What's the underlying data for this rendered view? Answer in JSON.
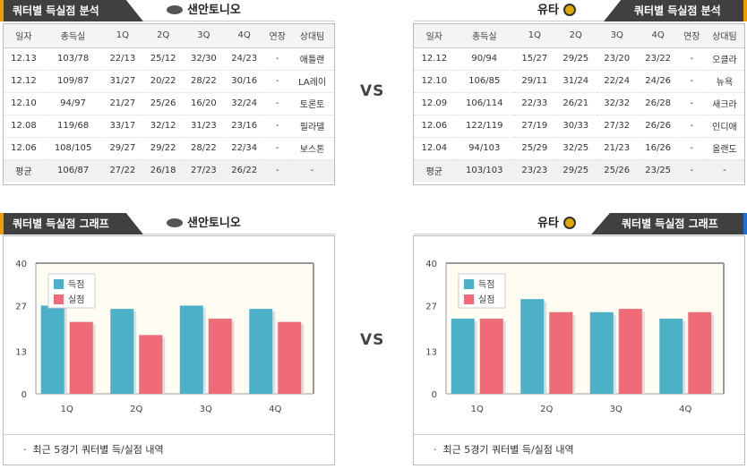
{
  "analysis": {
    "title": "쿼터별 득실점 분석",
    "left_team": "샌안토니오",
    "right_team": "유타",
    "columns": [
      "일자",
      "총득실",
      "1Q",
      "2Q",
      "3Q",
      "4Q",
      "연장",
      "상대팀"
    ],
    "left_rows": [
      [
        "12.13",
        "103/78",
        "22/13",
        "25/12",
        "32/30",
        "24/23",
        "-",
        "애틀랜"
      ],
      [
        "12.12",
        "109/87",
        "31/27",
        "20/22",
        "28/22",
        "30/16",
        "-",
        "LA레이"
      ],
      [
        "12.10",
        "94/97",
        "21/27",
        "25/26",
        "16/20",
        "32/24",
        "-",
        "토론토"
      ],
      [
        "12.08",
        "119/68",
        "33/17",
        "32/12",
        "31/23",
        "23/16",
        "-",
        "필라델"
      ],
      [
        "12.06",
        "108/105",
        "29/27",
        "29/22",
        "28/22",
        "22/34",
        "-",
        "보스톤"
      ]
    ],
    "left_avg": [
      "평균",
      "106/87",
      "27/22",
      "26/18",
      "27/23",
      "26/22",
      "-",
      "-"
    ],
    "right_rows": [
      [
        "12.12",
        "90/94",
        "15/27",
        "29/25",
        "23/20",
        "23/22",
        "-",
        "오클라"
      ],
      [
        "12.10",
        "106/85",
        "29/11",
        "31/24",
        "22/24",
        "24/26",
        "-",
        "뉴욕"
      ],
      [
        "12.09",
        "106/114",
        "22/33",
        "26/21",
        "32/32",
        "26/28",
        "-",
        "새크라"
      ],
      [
        "12.06",
        "122/119",
        "27/19",
        "30/33",
        "27/32",
        "26/26",
        "-",
        "인디애"
      ],
      [
        "12.04",
        "94/103",
        "25/29",
        "32/25",
        "21/23",
        "16/26",
        "-",
        "올랜도"
      ]
    ],
    "right_avg": [
      "평균",
      "103/103",
      "23/23",
      "29/25",
      "25/26",
      "23/25",
      "-",
      "-"
    ]
  },
  "vs_label": "VS",
  "graph": {
    "title": "쿼터별 득실점 그래프",
    "left_team": "샌안토니오",
    "right_team": "유타",
    "note": "최근 5경기 쿼터별 득/실점 내역",
    "colors": {
      "scored": "#4bb0c8",
      "conceded": "#f06b78"
    }
  },
  "chart_data": [
    {
      "type": "bar",
      "categories": [
        "1Q",
        "2Q",
        "3Q",
        "4Q"
      ],
      "series": [
        {
          "name": "득점",
          "values": [
            27,
            26,
            27,
            26
          ]
        },
        {
          "name": "실점",
          "values": [
            22,
            18,
            23,
            22
          ]
        }
      ],
      "yticks": [
        "0",
        "13",
        "27",
        "40"
      ],
      "ylim": [
        0,
        40
      ],
      "legend": "top-left",
      "grid": false
    },
    {
      "type": "bar",
      "categories": [
        "1Q",
        "2Q",
        "3Q",
        "4Q"
      ],
      "series": [
        {
          "name": "득점",
          "values": [
            23,
            29,
            25,
            23
          ]
        },
        {
          "name": "실점",
          "values": [
            23,
            25,
            26,
            25
          ]
        }
      ],
      "yticks": [
        "0",
        "13",
        "27",
        "40"
      ],
      "ylim": [
        0,
        40
      ],
      "legend": "top-left",
      "grid": false
    }
  ]
}
